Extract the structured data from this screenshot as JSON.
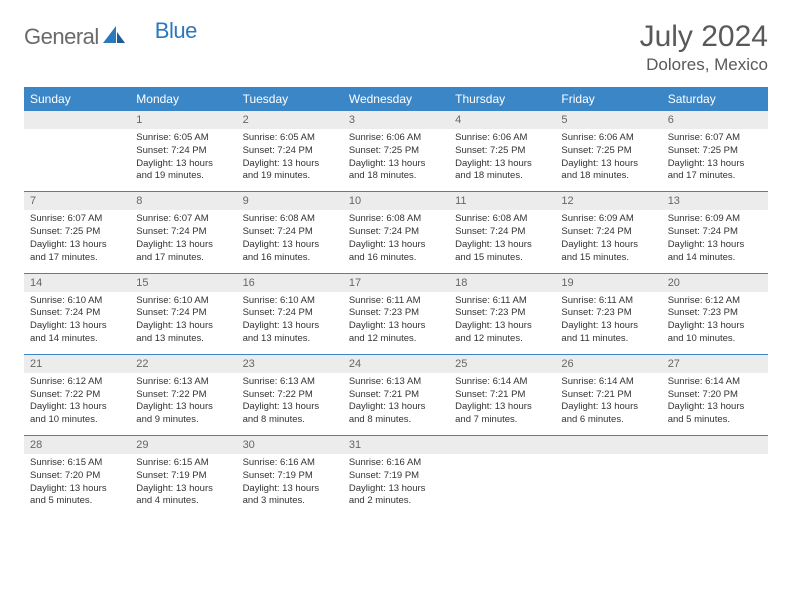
{
  "brand": {
    "general": "General",
    "blue": "Blue"
  },
  "title": "July 2024",
  "location": "Dolores, Mexico",
  "colors": {
    "header_bg": "#3b86c7",
    "header_text": "#ffffff",
    "daynum_bg": "#ececec",
    "daynum_text": "#666666",
    "body_text": "#333333",
    "rule": "#3b86c7",
    "title_text": "#595959"
  },
  "typography": {
    "title_fontsize": 30,
    "location_fontsize": 17,
    "dayhead_fontsize": 12,
    "daynum_fontsize": 11,
    "body_fontsize": 9.5
  },
  "weekdays": [
    "Sunday",
    "Monday",
    "Tuesday",
    "Wednesday",
    "Thursday",
    "Friday",
    "Saturday"
  ],
  "grid": {
    "type": "calendar",
    "start_weekday": 1,
    "rows": 5,
    "cols": 7
  },
  "days": [
    {
      "n": 1,
      "sunrise": "6:05 AM",
      "sunset": "7:24 PM",
      "daylight": "13 hours and 19 minutes."
    },
    {
      "n": 2,
      "sunrise": "6:05 AM",
      "sunset": "7:24 PM",
      "daylight": "13 hours and 19 minutes."
    },
    {
      "n": 3,
      "sunrise": "6:06 AM",
      "sunset": "7:25 PM",
      "daylight": "13 hours and 18 minutes."
    },
    {
      "n": 4,
      "sunrise": "6:06 AM",
      "sunset": "7:25 PM",
      "daylight": "13 hours and 18 minutes."
    },
    {
      "n": 5,
      "sunrise": "6:06 AM",
      "sunset": "7:25 PM",
      "daylight": "13 hours and 18 minutes."
    },
    {
      "n": 6,
      "sunrise": "6:07 AM",
      "sunset": "7:25 PM",
      "daylight": "13 hours and 17 minutes."
    },
    {
      "n": 7,
      "sunrise": "6:07 AM",
      "sunset": "7:25 PM",
      "daylight": "13 hours and 17 minutes."
    },
    {
      "n": 8,
      "sunrise": "6:07 AM",
      "sunset": "7:24 PM",
      "daylight": "13 hours and 17 minutes."
    },
    {
      "n": 9,
      "sunrise": "6:08 AM",
      "sunset": "7:24 PM",
      "daylight": "13 hours and 16 minutes."
    },
    {
      "n": 10,
      "sunrise": "6:08 AM",
      "sunset": "7:24 PM",
      "daylight": "13 hours and 16 minutes."
    },
    {
      "n": 11,
      "sunrise": "6:08 AM",
      "sunset": "7:24 PM",
      "daylight": "13 hours and 15 minutes."
    },
    {
      "n": 12,
      "sunrise": "6:09 AM",
      "sunset": "7:24 PM",
      "daylight": "13 hours and 15 minutes."
    },
    {
      "n": 13,
      "sunrise": "6:09 AM",
      "sunset": "7:24 PM",
      "daylight": "13 hours and 14 minutes."
    },
    {
      "n": 14,
      "sunrise": "6:10 AM",
      "sunset": "7:24 PM",
      "daylight": "13 hours and 14 minutes."
    },
    {
      "n": 15,
      "sunrise": "6:10 AM",
      "sunset": "7:24 PM",
      "daylight": "13 hours and 13 minutes."
    },
    {
      "n": 16,
      "sunrise": "6:10 AM",
      "sunset": "7:24 PM",
      "daylight": "13 hours and 13 minutes."
    },
    {
      "n": 17,
      "sunrise": "6:11 AM",
      "sunset": "7:23 PM",
      "daylight": "13 hours and 12 minutes."
    },
    {
      "n": 18,
      "sunrise": "6:11 AM",
      "sunset": "7:23 PM",
      "daylight": "13 hours and 12 minutes."
    },
    {
      "n": 19,
      "sunrise": "6:11 AM",
      "sunset": "7:23 PM",
      "daylight": "13 hours and 11 minutes."
    },
    {
      "n": 20,
      "sunrise": "6:12 AM",
      "sunset": "7:23 PM",
      "daylight": "13 hours and 10 minutes."
    },
    {
      "n": 21,
      "sunrise": "6:12 AM",
      "sunset": "7:22 PM",
      "daylight": "13 hours and 10 minutes."
    },
    {
      "n": 22,
      "sunrise": "6:13 AM",
      "sunset": "7:22 PM",
      "daylight": "13 hours and 9 minutes."
    },
    {
      "n": 23,
      "sunrise": "6:13 AM",
      "sunset": "7:22 PM",
      "daylight": "13 hours and 8 minutes."
    },
    {
      "n": 24,
      "sunrise": "6:13 AM",
      "sunset": "7:21 PM",
      "daylight": "13 hours and 8 minutes."
    },
    {
      "n": 25,
      "sunrise": "6:14 AM",
      "sunset": "7:21 PM",
      "daylight": "13 hours and 7 minutes."
    },
    {
      "n": 26,
      "sunrise": "6:14 AM",
      "sunset": "7:21 PM",
      "daylight": "13 hours and 6 minutes."
    },
    {
      "n": 27,
      "sunrise": "6:14 AM",
      "sunset": "7:20 PM",
      "daylight": "13 hours and 5 minutes."
    },
    {
      "n": 28,
      "sunrise": "6:15 AM",
      "sunset": "7:20 PM",
      "daylight": "13 hours and 5 minutes."
    },
    {
      "n": 29,
      "sunrise": "6:15 AM",
      "sunset": "7:19 PM",
      "daylight": "13 hours and 4 minutes."
    },
    {
      "n": 30,
      "sunrise": "6:16 AM",
      "sunset": "7:19 PM",
      "daylight": "13 hours and 3 minutes."
    },
    {
      "n": 31,
      "sunrise": "6:16 AM",
      "sunset": "7:19 PM",
      "daylight": "13 hours and 2 minutes."
    }
  ],
  "labels": {
    "sunrise": "Sunrise:",
    "sunset": "Sunset:",
    "daylight": "Daylight:"
  }
}
